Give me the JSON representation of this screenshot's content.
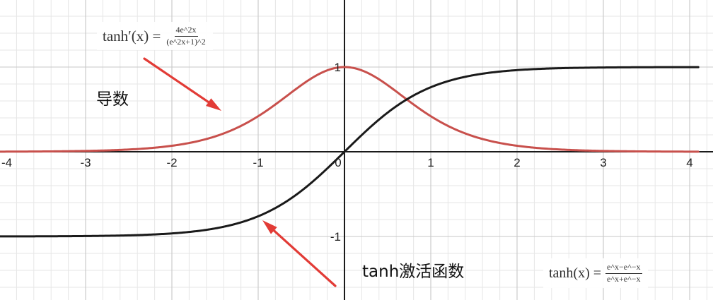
{
  "chart_data": {
    "type": "line",
    "xlim": [
      -4.1,
      4.1
    ],
    "ylim": [
      -1.45,
      1.75
    ],
    "grid": true,
    "x_ticks": [
      "-4",
      "-3",
      "-2",
      "-1",
      "0",
      "1",
      "2",
      "3",
      "4"
    ],
    "y_ticks": [
      "1",
      "-1"
    ],
    "series": [
      {
        "name": "tanh激活函数",
        "function": "tanh(x)",
        "color": "#1a1a1a",
        "x": [
          -4,
          -3,
          -2,
          -1.5,
          -1,
          -0.5,
          0,
          0.5,
          1,
          1.5,
          2,
          3,
          4
        ],
        "y": [
          -0.999,
          -0.995,
          -0.964,
          -0.905,
          -0.762,
          -0.462,
          0,
          0.462,
          0.762,
          0.905,
          0.964,
          0.995,
          0.999
        ]
      },
      {
        "name": "导数",
        "function": "1 - tanh(x)^2",
        "color": "#c8504c",
        "x": [
          -4,
          -3,
          -2,
          -1.5,
          -1,
          -0.5,
          0,
          0.5,
          1,
          1.5,
          2,
          3,
          4
        ],
        "y": [
          0.001,
          0.01,
          0.071,
          0.181,
          0.42,
          0.786,
          1,
          0.786,
          0.42,
          0.181,
          0.071,
          0.01,
          0.001
        ]
      }
    ],
    "annotations": {
      "derivative_label": "导数",
      "tanh_label": "tanh激活函数",
      "derivative_formula": {
        "lhs": "tanh′(x) =",
        "numerator": "4e^2x",
        "denominator": "(e^2x+1)^2"
      },
      "tanh_formula": {
        "lhs": "tanh(x) =",
        "numerator": "e^x−e^−x",
        "denominator": "e^x+e^−x"
      }
    },
    "colors": {
      "grid_minor": "#e6e6e6",
      "grid_major": "#c7c7c7",
      "axis": "#1a1a1a",
      "arrow": "#e23b36"
    }
  }
}
